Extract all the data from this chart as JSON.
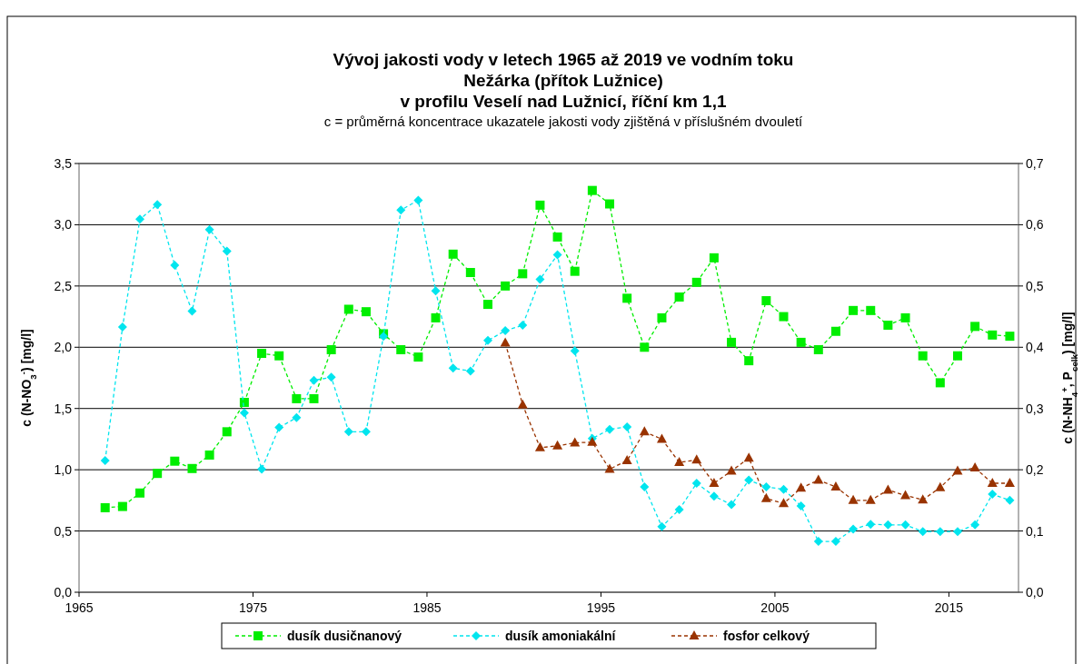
{
  "chart_data": {
    "type": "line",
    "title": "Vývoj jakosti vody v letech 1965 až 2019 ve vodním toku\nNežárka (přítok Lužnice)\nv profilu Veselí nad Lužnicí, říční km 1,1",
    "subtitle": "c = průměrná koncentrace ukazatele jakosti vody zjištěná v příslušném dvouletí",
    "ylabel": "c (N-NO$_{3}$$^{-}$) [mg/l]",
    "y2label": "c (N-NH$_{4}$$^{+}$, P$_{celk}$) [mg/l]",
    "x": [
      1966.5,
      1967.5,
      1968.5,
      1969.5,
      1970.5,
      1971.5,
      1972.5,
      1973.5,
      1974.5,
      1975.5,
      1976.5,
      1977.5,
      1978.5,
      1979.5,
      1980.5,
      1981.5,
      1982.5,
      1983.5,
      1984.5,
      1985.5,
      1986.5,
      1987.5,
      1988.5,
      1989.5,
      1990.5,
      1991.5,
      1992.5,
      1993.5,
      1994.5,
      1995.5,
      1996.5,
      1997.5,
      1998.5,
      1999.5,
      2000.5,
      2001.5,
      2002.5,
      2003.5,
      2004.5,
      2005.5,
      2006.5,
      2007.5,
      2008.5,
      2009.5,
      2010.5,
      2011.5,
      2012.5,
      2013.5,
      2014.5,
      2015.5,
      2016.5,
      2017.5,
      2018.5
    ],
    "series": [
      {
        "name": "dusík dusičnanový",
        "color": "#00ee00",
        "marker": "square",
        "values": [
          0.69,
          0.7,
          0.81,
          0.97,
          1.07,
          1.01,
          1.12,
          1.31,
          1.55,
          1.95,
          1.93,
          1.58,
          1.58,
          1.98,
          2.31,
          2.29,
          2.11,
          1.98,
          1.92,
          2.24,
          2.76,
          2.61,
          2.35,
          2.5,
          2.6,
          3.16,
          2.9,
          2.62,
          3.28,
          3.17,
          2.4,
          2.0,
          2.24,
          2.41,
          2.53,
          2.73,
          2.04,
          1.89,
          2.38,
          2.25,
          2.04,
          1.98,
          2.13,
          2.3,
          2.3,
          2.18,
          2.24,
          1.93,
          1.71,
          1.93,
          2.17,
          2.1,
          2.09
        ]
      },
      {
        "name": "dusík amoniakální",
        "color": "#00e5ee",
        "marker": "diamond",
        "axis": "y2",
        "values": [
          0.215,
          0.433,
          0.609,
          0.633,
          0.534,
          0.459,
          0.592,
          0.557,
          0.293,
          0.201,
          0.269,
          0.285,
          0.346,
          0.351,
          0.262,
          0.262,
          0.418,
          0.624,
          0.64,
          0.492,
          0.366,
          0.361,
          0.411,
          0.427,
          0.436,
          0.511,
          0.551,
          0.394,
          0.251,
          0.266,
          0.27,
          0.172,
          0.107,
          0.135,
          0.178,
          0.157,
          0.143,
          0.183,
          0.172,
          0.168,
          0.141,
          0.083,
          0.083,
          0.103,
          0.111,
          0.11,
          0.11,
          0.099,
          0.099,
          0.099,
          0.11,
          0.16,
          0.15
        ]
      },
      {
        "name": "fosfor celkový",
        "color": "#993300",
        "marker": "triangle",
        "axis": "y2",
        "x": [
          1989.5,
          1990.5,
          1991.5,
          1992.5,
          1993.5,
          1994.5,
          1995.5,
          1996.5,
          1997.5,
          1998.5,
          1999.5,
          2000.5,
          2001.5,
          2002.5,
          2003.5,
          2004.5,
          2005.5,
          2006.5,
          2007.5,
          2008.5,
          2009.5,
          2010.5,
          2011.5,
          2012.5,
          2013.5,
          2014.5,
          2015.5,
          2016.5,
          2017.5,
          2018.5
        ],
        "values": [
          0.407,
          0.306,
          0.236,
          0.239,
          0.244,
          0.245,
          0.201,
          0.215,
          0.262,
          0.25,
          0.212,
          0.216,
          0.178,
          0.198,
          0.219,
          0.153,
          0.145,
          0.17,
          0.183,
          0.172,
          0.15,
          0.15,
          0.167,
          0.158,
          0.151,
          0.171,
          0.198,
          0.203,
          0.178,
          0.178
        ]
      }
    ],
    "xlim": [
      1965,
      2019
    ],
    "xticks": [
      1965,
      1975,
      1985,
      1995,
      2005,
      2015
    ],
    "ylim": [
      0,
      3.5
    ],
    "yticks": [
      {
        "value": 0,
        "label": "0,0"
      },
      {
        "value": 0.5,
        "label": "0,5"
      },
      {
        "value": 1,
        "label": "1,0"
      },
      {
        "value": 1.5,
        "label": "1,5"
      },
      {
        "value": 2,
        "label": "2,0"
      },
      {
        "value": 2.5,
        "label": "2,5"
      },
      {
        "value": 3,
        "label": "3,0"
      },
      {
        "value": 3.5,
        "label": "3,5"
      }
    ],
    "y2lim": [
      0,
      0.7
    ],
    "y2ticks": [
      {
        "value": 0,
        "label": "0,0"
      },
      {
        "value": 0.1,
        "label": "0,1"
      },
      {
        "value": 0.2,
        "label": "0,2"
      },
      {
        "value": 0.3,
        "label": "0,3"
      },
      {
        "value": 0.4,
        "label": "0,4"
      },
      {
        "value": 0.5,
        "label": "0,5"
      },
      {
        "value": 0.6,
        "label": "0,6"
      },
      {
        "value": 0.7,
        "label": "0,7"
      }
    ],
    "grid": "y",
    "legend": "bottom",
    "line_style": "dashed"
  }
}
